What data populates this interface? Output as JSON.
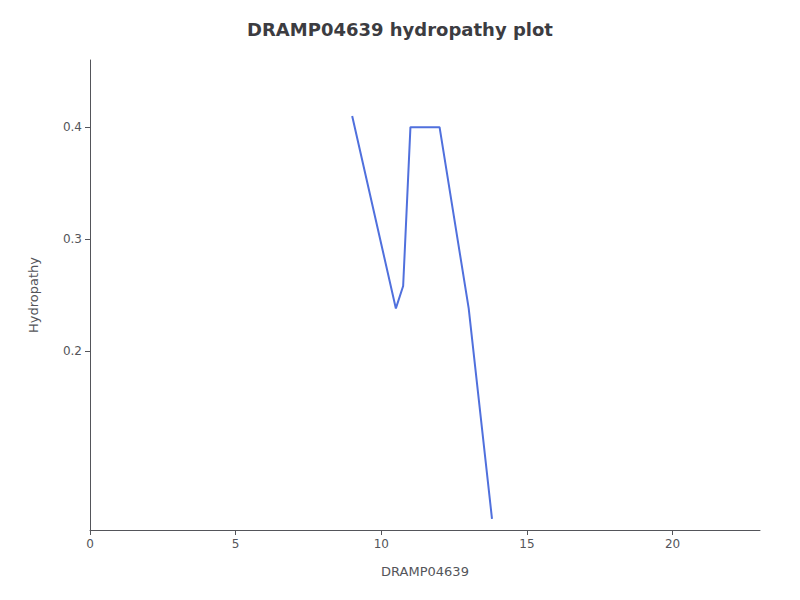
{
  "chart_data": {
    "type": "line",
    "title": "DRAMP04639 hydropathy plot",
    "xlabel": "DRAMP04639",
    "ylabel": "Hydropathy",
    "x": [
      9.0,
      10.5,
      10.75,
      11.0,
      12.0,
      13.0,
      13.8
    ],
    "values": [
      0.41,
      0.238,
      0.258,
      0.4,
      0.4,
      0.238,
      0.05
    ],
    "xlim": [
      0,
      23
    ],
    "ylim": [
      0.04,
      0.46
    ],
    "xticks": [
      0,
      5,
      10,
      15,
      20
    ],
    "yticks": [
      0.2,
      0.3,
      0.4
    ],
    "grid": false
  }
}
